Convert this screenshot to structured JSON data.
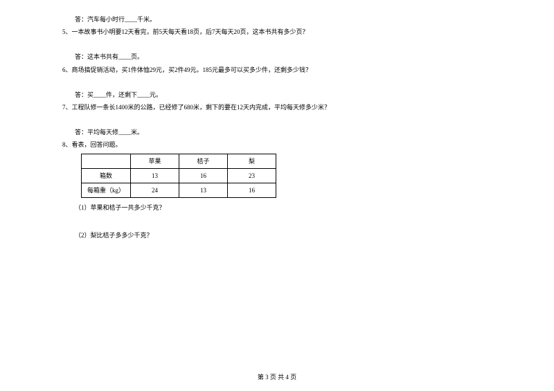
{
  "q4_answer": "答：汽车每小时行____千米。",
  "q5": "5、一本故事书小明要12天看完，前5天每天看18页，后7天每天20页，这本书共有多少页？",
  "q5_answer": "答：这本书共有____页。",
  "q6": "6、商场搞促销活动，买1件体恤29元，买2件49元。185元最多可以买多少件，还剩多少钱？",
  "q6_answer": "答：买____件，还剩下____元。",
  "q7": "7、工程队修一条长1400米的公路，已经修了680米，剩下的要在12天内完成，平均每天修多少米？",
  "q7_answer": "答：平均每天修____米。",
  "q8": "8、看表，回答问题。",
  "table": {
    "headers": [
      "",
      "苹果",
      "桔子",
      "梨"
    ],
    "rows": [
      [
        "箱数",
        "13",
        "16",
        "23"
      ],
      [
        "每箱重（kg）",
        "24",
        "13",
        "16"
      ]
    ]
  },
  "q8_1": "（1）苹果和桔子一共多少千克？",
  "q8_2": "（2）梨比桔子多多少千克？",
  "footer": "第 3 页 共 4 页"
}
